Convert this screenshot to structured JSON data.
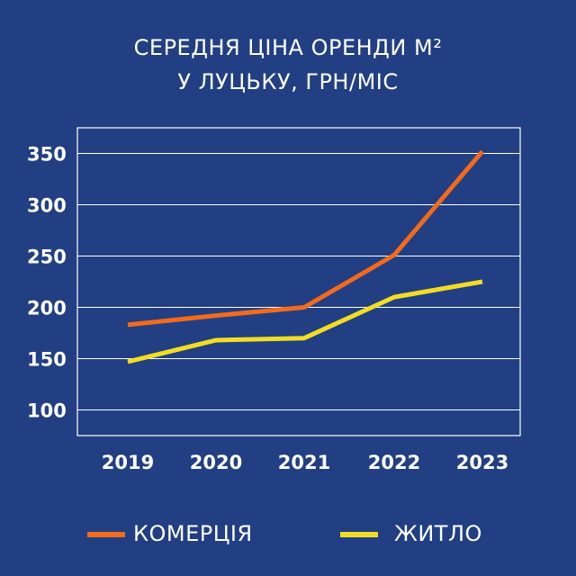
{
  "colors": {
    "background": "#213f82",
    "commercial": "#f26a1b",
    "residential": "#f2dd23",
    "grid": "#ffffff"
  },
  "chart_data": {
    "type": "line",
    "title_lines": [
      "СЕРЕДНЯ ЦІНА ОРЕНДИ М²",
      "У ЛУЦЬКУ, ГРН/МІС"
    ],
    "categories": [
      "2019",
      "2020",
      "2021",
      "2022",
      "2023"
    ],
    "y_ticks": [
      "100",
      "150",
      "200",
      "250",
      "300",
      "350"
    ],
    "ylim": [
      75,
      375
    ],
    "grid": true,
    "legend_position": "bottom",
    "series": [
      {
        "name": "КОМЕРЦІЯ",
        "color": "#f26a1b",
        "values": [
          183,
          192,
          200,
          251,
          352
        ]
      },
      {
        "name": "ЖИТЛО",
        "color": "#f2dd23",
        "values": [
          147,
          168,
          170,
          210,
          225
        ]
      }
    ]
  }
}
